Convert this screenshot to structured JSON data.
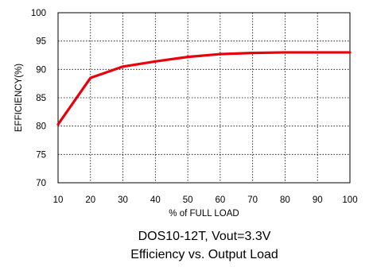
{
  "chart_data": {
    "type": "line",
    "x": [
      10,
      20,
      30,
      40,
      50,
      60,
      70,
      80,
      90,
      100
    ],
    "series": [
      {
        "values": [
          80.3,
          88.5,
          90.5,
          91.4,
          92.2,
          92.7,
          92.9,
          93.0,
          93.0,
          93.0
        ],
        "color": "#e8000b"
      }
    ],
    "xlabel": "% of FULL LOAD",
    "ylabel": "EFFICIENCY(%)",
    "xlim": [
      10,
      100
    ],
    "ylim": [
      70,
      100
    ],
    "xticks": [
      10,
      20,
      30,
      40,
      50,
      60,
      70,
      80,
      90,
      100
    ],
    "yticks": [
      70,
      75,
      80,
      85,
      90,
      95,
      100
    ],
    "grid": true,
    "caption_line1": "DOS10-12T, Vout=3.3V",
    "caption_line2": "Efficiency vs. Output Load"
  }
}
